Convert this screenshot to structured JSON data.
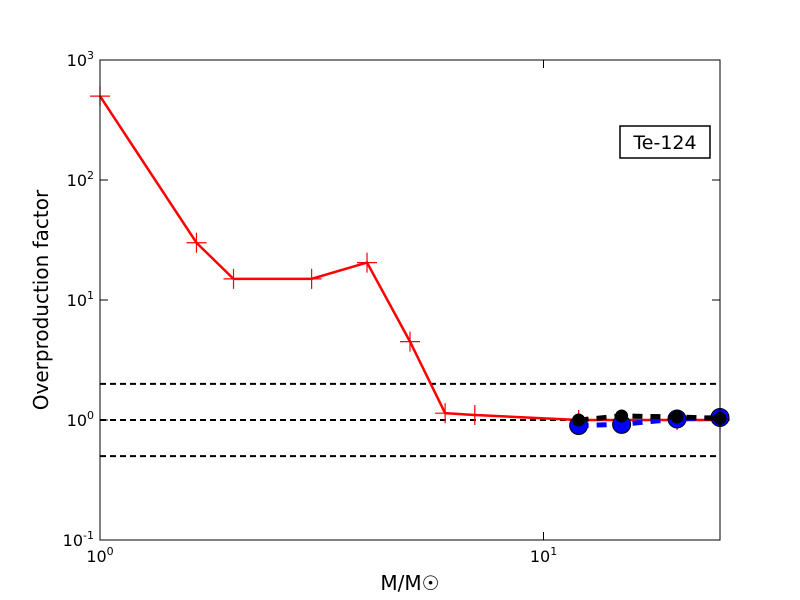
{
  "chart_data": {
    "type": "line",
    "xlabel": "M/M☉",
    "ylabel": "Overproduction factor",
    "annotation": "Te-124",
    "xscale": "log",
    "yscale": "log",
    "xlim": [
      1,
      25
    ],
    "ylim": [
      0.1,
      1000
    ],
    "xticks": [
      {
        "value": 1,
        "label": "10^0"
      },
      {
        "value": 10,
        "label": "10^1"
      }
    ],
    "yticks": [
      {
        "value": 0.1,
        "label": "10^-1"
      },
      {
        "value": 1,
        "label": "10^0"
      },
      {
        "value": 10,
        "label": "10^1"
      },
      {
        "value": 100,
        "label": "10^2"
      },
      {
        "value": 1000,
        "label": "10^3"
      }
    ],
    "hlines": [
      0.5,
      1,
      2
    ],
    "series": [
      {
        "color": "#ff0000",
        "marker": "plus",
        "dash": false,
        "x": [
          1,
          1.65,
          2,
          3,
          4,
          5,
          6,
          7,
          12,
          15,
          20,
          25
        ],
        "values": [
          500,
          30,
          15,
          15,
          20.5,
          4.5,
          1.14,
          1.1,
          1.0,
          1.0,
          1.0,
          1.0
        ]
      },
      {
        "color": "#0000ff",
        "marker": "circle",
        "dash": true,
        "x": [
          12,
          15,
          20,
          25
        ],
        "values": [
          0.9,
          0.92,
          1.02,
          1.05
        ]
      },
      {
        "color": "#000000",
        "marker": "circle",
        "dash": true,
        "x": [
          12,
          15,
          20,
          25
        ],
        "values": [
          1.0,
          1.08,
          1.06,
          1.03
        ]
      }
    ]
  }
}
